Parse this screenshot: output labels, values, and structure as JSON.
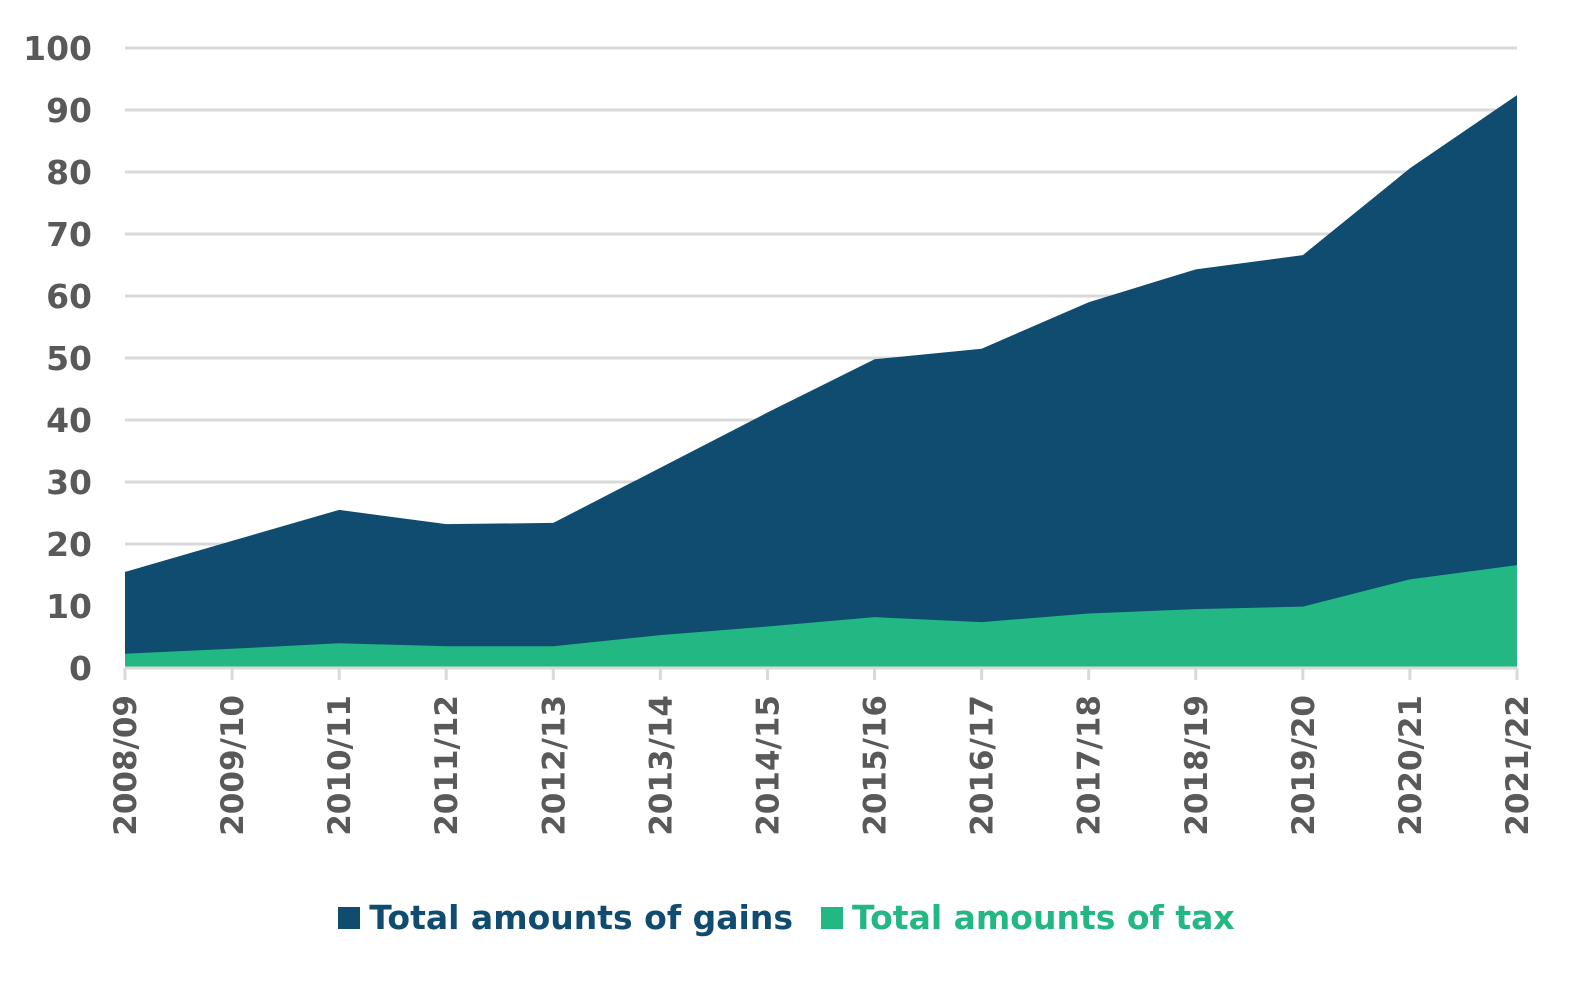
{
  "chart_data": {
    "type": "area",
    "categories": [
      "2008/09",
      "2009/10",
      "2010/11",
      "2011/12",
      "2012/13",
      "2013/14",
      "2014/15",
      "2015/16",
      "2016/17",
      "2017/18",
      "2018/19",
      "2019/20",
      "2020/21",
      "2021/22"
    ],
    "series": [
      {
        "name": "Total amounts of gains",
        "color": "#0f4c70",
        "values": [
          15.5,
          20.5,
          25.5,
          23.2,
          23.4,
          32.3,
          41.2,
          49.8,
          51.5,
          59.0,
          64.3,
          66.6,
          80.6,
          92.4
        ]
      },
      {
        "name": "Total amounts of tax",
        "color": "#23b784",
        "values": [
          2.3,
          3.1,
          4.0,
          3.5,
          3.5,
          5.3,
          6.7,
          8.2,
          7.4,
          8.8,
          9.5,
          9.9,
          14.3,
          16.6
        ]
      }
    ],
    "ylim": [
      0,
      100
    ],
    "yticks": [
      0,
      10,
      20,
      30,
      40,
      50,
      60,
      70,
      80,
      90,
      100
    ],
    "grid": true,
    "legend": "bottom",
    "xlabel": "",
    "ylabel": ""
  }
}
